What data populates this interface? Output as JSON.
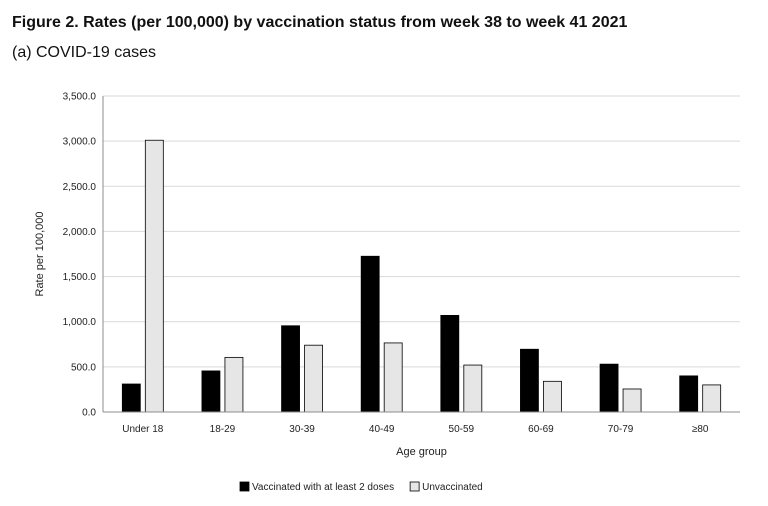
{
  "figure": {
    "title": "Figure 2. Rates (per 100,000) by vaccination status from week 38 to week 41 2021",
    "subtitle": "(a) COVID-19 cases"
  },
  "chart_data": {
    "type": "bar",
    "categories": [
      "Under 18",
      "18-29",
      "30-39",
      "40-49",
      "50-59",
      "60-69",
      "70-79",
      "≥80"
    ],
    "series": [
      {
        "name": "Vaccinated with at least 2 doses",
        "color": "#000000",
        "values": [
          310,
          455,
          955,
          1725,
          1070,
          695,
          530,
          400
        ]
      },
      {
        "name": "Unvaccinated",
        "color": "#e6e6e6",
        "values": [
          3010,
          605,
          740,
          765,
          520,
          340,
          255,
          300
        ]
      }
    ],
    "ylabel": "Rate per 100,000",
    "xlabel": "Age group",
    "ylim": [
      0,
      3500
    ],
    "yticks": [
      "0.0",
      "500.0",
      "1,000.0",
      "1,500.0",
      "2,000.0",
      "2,500.0",
      "3,000.0",
      "3,500.0"
    ],
    "grid": true,
    "legend_position": "bottom"
  }
}
